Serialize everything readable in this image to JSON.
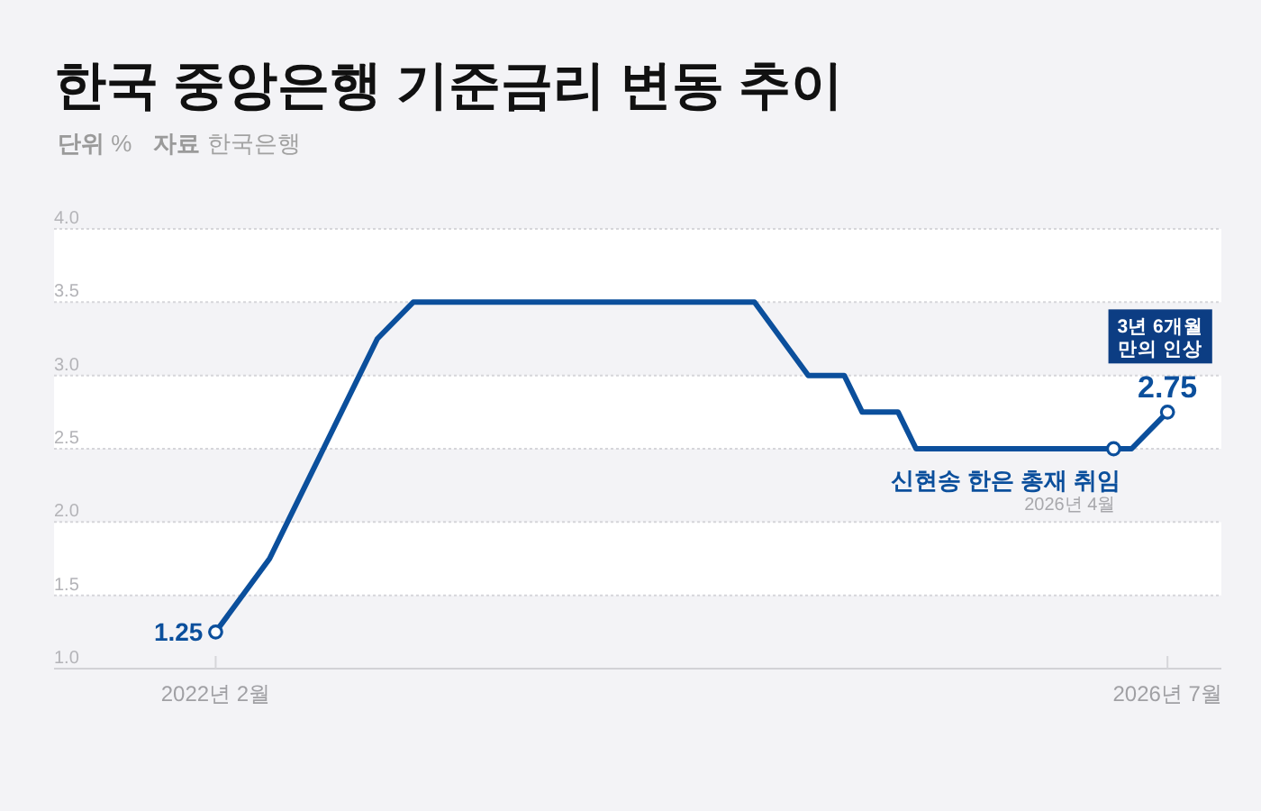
{
  "chart_data": {
    "type": "line",
    "title": "한국 중앙은행 기준금리 변동 추이",
    "ylabel": "단위 %",
    "annotations": [
      {
        "text": "3년 6개월\n만의 인상",
        "x": "2026-07",
        "y": 2.75
      },
      {
        "text": "신현송 한은 총재 취임",
        "x": "2026-04",
        "y": 2.5
      },
      {
        "text": "2026년 4월",
        "x": "2026-04",
        "y": 2.5
      },
      "자료 한국은행"
    ],
    "x": [
      "2022-02",
      "2022-05",
      "2022-07",
      "2022-08",
      "2022-10",
      "2022-11",
      "2023-01",
      "2024-08",
      "2024-11",
      "2025-01",
      "2025-02",
      "2025-04",
      "2025-05",
      "2026-05",
      "2026-07"
    ],
    "series": [
      {
        "color": "#0b4f9c",
        "values": [
          1.25,
          1.75,
          2.25,
          2.5,
          3.0,
          3.25,
          3.5,
          3.5,
          3.0,
          3.0,
          2.75,
          2.75,
          2.5,
          2.5,
          2.75
        ]
      },
      {
        "type": "scatter",
        "marker": "circle",
        "color": "#0b4f9c",
        "x": [
          "2022-02",
          "2026-04",
          "2026-07"
        ],
        "values": [
          1.25,
          2.5,
          2.75
        ],
        "value_labels": [
          "1.25",
          null,
          "2.75"
        ]
      }
    ],
    "xlim": [
      "2021-05",
      "2026-10"
    ],
    "xticks": [
      {
        "value": "2022-02",
        "label": "2022년 2월"
      },
      {
        "value": "2026-07",
        "label": "2026년 7월"
      }
    ],
    "ylim": [
      1.0,
      4.0
    ],
    "yticks": [
      {
        "value": 1.0,
        "label": "1.0"
      },
      1.5,
      {
        "value": 2.0,
        "label": "2.0"
      },
      2.5,
      {
        "value": 3.0,
        "label": "3.0"
      },
      3.5,
      {
        "value": 4.0,
        "label": "4.0"
      }
    ],
    "grid": "y"
  }
}
